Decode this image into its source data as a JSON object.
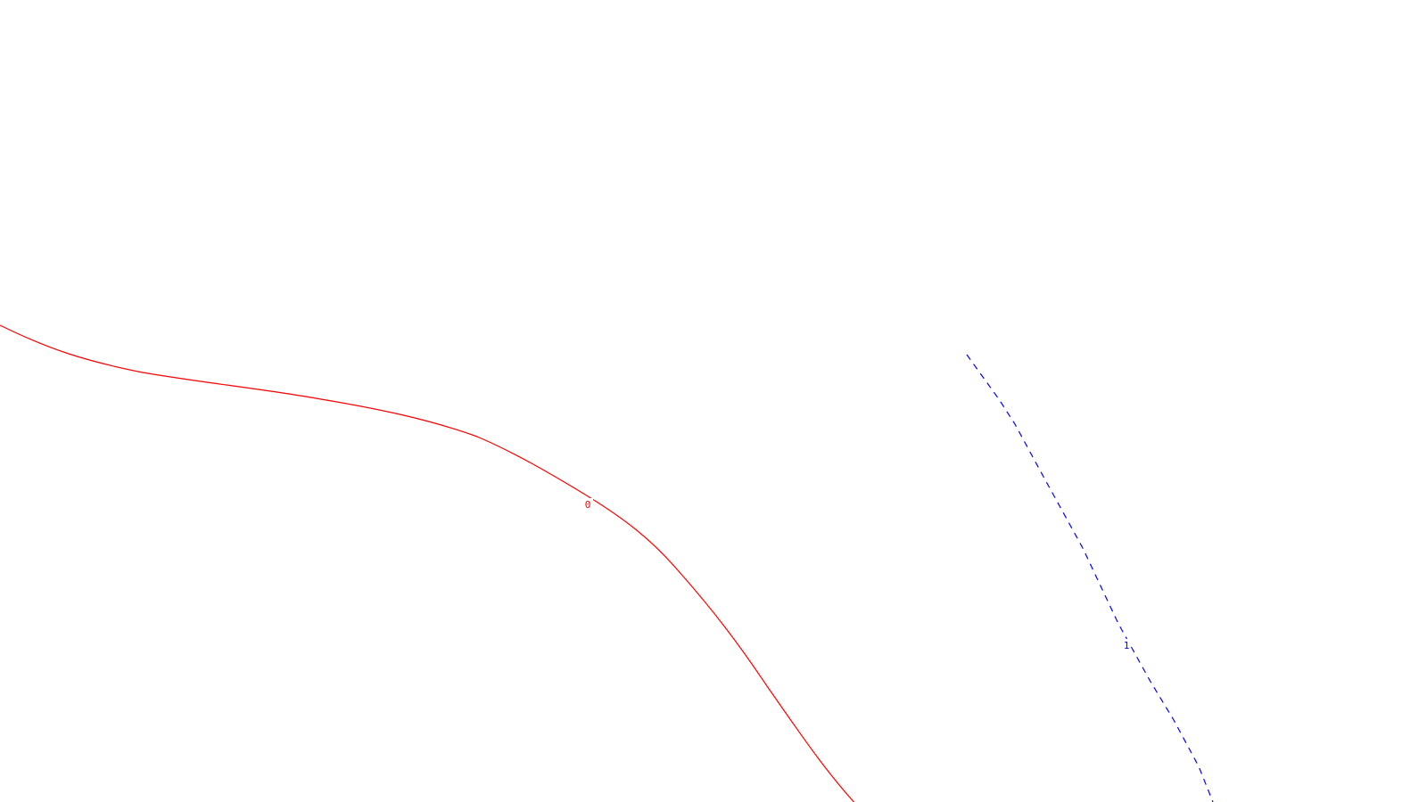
{
  "contours": [
    {
      "name": "contour-0",
      "label": "0",
      "color": "#ff0000",
      "style": "solid"
    },
    {
      "name": "contour-1",
      "label": "1",
      "color": "#0000ff",
      "style": "dashed"
    }
  ]
}
